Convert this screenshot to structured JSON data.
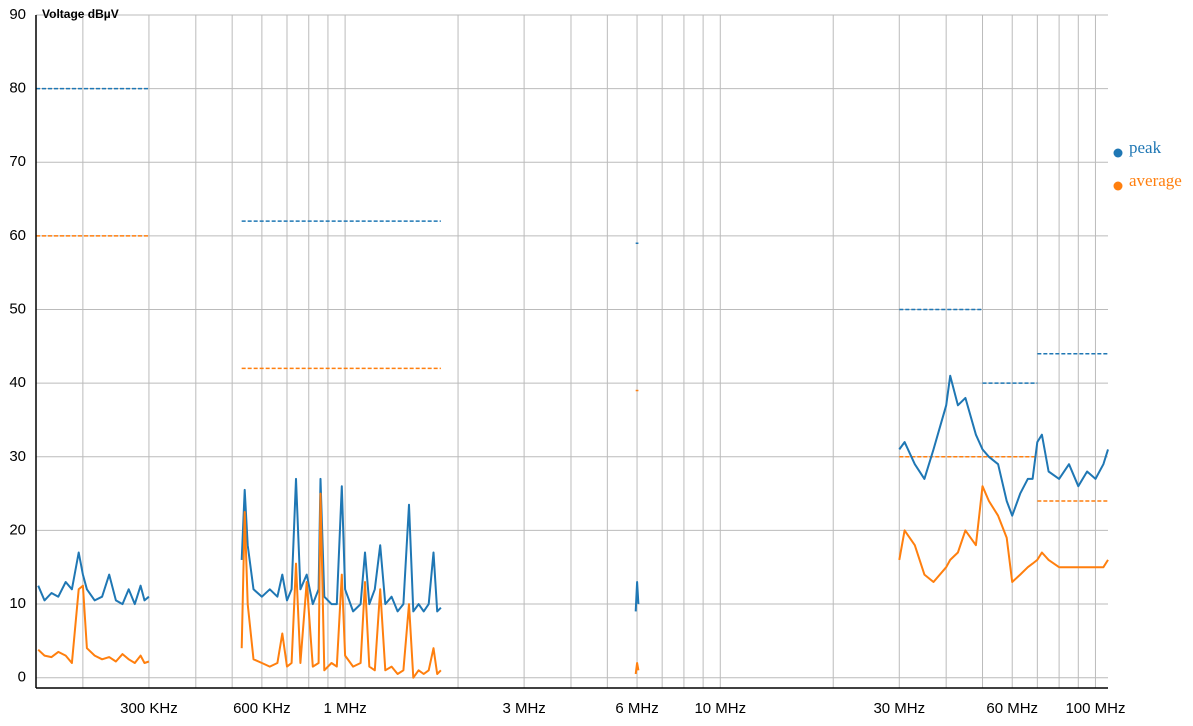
{
  "chart_data": {
    "type": "line",
    "y_label": "Voltage dBµV",
    "xscale": "log",
    "xlim": [
      0.15,
      108
    ],
    "ylim": [
      -1.4,
      90
    ],
    "xticks": [
      {
        "value": 0.3,
        "label": "300 KHz"
      },
      {
        "value": 0.6,
        "label": "600 KHz"
      },
      {
        "value": 1,
        "label": "1 MHz"
      },
      {
        "value": 3,
        "label": "3 MHz"
      },
      {
        "value": 6,
        "label": "6 MHz"
      },
      {
        "value": 10,
        "label": "10 MHz"
      },
      {
        "value": 30,
        "label": "30 MHz"
      },
      {
        "value": 60,
        "label": "60 MHz"
      },
      {
        "value": 100,
        "label": "100 MHz"
      }
    ],
    "xgrid": [
      0.2,
      0.4,
      0.5,
      0.7,
      0.8,
      0.9,
      2,
      4,
      5,
      7,
      8,
      9,
      20,
      40,
      50,
      70,
      80,
      90
    ],
    "yticks": [
      0,
      10,
      20,
      30,
      40,
      50,
      60,
      70,
      80,
      90
    ],
    "grid": true,
    "legend": "right",
    "x": [
      0.152,
      0.158,
      0.165,
      0.172,
      0.18,
      0.187,
      0.195,
      0.2,
      0.205,
      0.215,
      0.225,
      0.235,
      0.245,
      0.255,
      0.265,
      0.275,
      0.285,
      0.292,
      0.3,
      0.4,
      0.53,
      0.54,
      0.55,
      0.57,
      0.6,
      0.63,
      0.66,
      0.68,
      0.7,
      0.72,
      0.74,
      0.76,
      0.79,
      0.82,
      0.85,
      0.86,
      0.88,
      0.92,
      0.95,
      0.98,
      1.0,
      1.05,
      1.1,
      1.13,
      1.16,
      1.2,
      1.24,
      1.28,
      1.33,
      1.38,
      1.43,
      1.48,
      1.52,
      1.57,
      1.62,
      1.67,
      1.72,
      1.76,
      1.8,
      3,
      5.95,
      6.0,
      6.05,
      15,
      30,
      31,
      33,
      35,
      37,
      40,
      41,
      43,
      45,
      48,
      50,
      52,
      55,
      58,
      60,
      63,
      66,
      68,
      70,
      72,
      75,
      80,
      85,
      90,
      95,
      100,
      105,
      108
    ],
    "series": [
      {
        "name": "peak",
        "color": "#1f77b4",
        "values": [
          12.5,
          10.5,
          11.5,
          11,
          13,
          12,
          17,
          14,
          12,
          10.5,
          11,
          14,
          10.5,
          10,
          12,
          10,
          12.5,
          10.5,
          11,
          null,
          16,
          25.5,
          18,
          12,
          11,
          12,
          11,
          14,
          10.5,
          12,
          27,
          12,
          14,
          10,
          12,
          27,
          11,
          10,
          10,
          26,
          12,
          9,
          10,
          17,
          10,
          12,
          18,
          10,
          11,
          9,
          10,
          23.5,
          9,
          10,
          9,
          10,
          17,
          9,
          9.5,
          null,
          9,
          13,
          10,
          null,
          31,
          32,
          29,
          27,
          31,
          37,
          41,
          37,
          38,
          33,
          31,
          30,
          29,
          24,
          22,
          25,
          27,
          27,
          32,
          33,
          28,
          27,
          29,
          26,
          28,
          27,
          29,
          31
        ]
      },
      {
        "name": "average",
        "color": "#ff7f0e",
        "values": [
          3.8,
          3,
          2.8,
          3.5,
          3,
          2,
          12,
          12.5,
          4,
          3,
          2.5,
          2.8,
          2.2,
          3.2,
          2.5,
          2,
          3,
          2,
          2.2,
          null,
          4,
          22.5,
          10,
          2.5,
          2,
          1.5,
          2,
          6,
          1.5,
          2,
          15.5,
          2,
          13,
          1.5,
          2,
          25,
          1,
          2,
          1.5,
          14,
          3,
          1.5,
          2,
          13,
          1.5,
          1,
          12,
          1,
          1.5,
          0.5,
          1,
          10,
          0,
          1,
          0.5,
          1,
          4,
          0.5,
          1,
          null,
          0.5,
          2,
          1,
          null,
          16,
          20,
          18,
          14,
          13,
          15,
          16,
          17,
          20,
          18,
          26,
          24,
          22,
          19,
          13,
          14,
          15,
          15.5,
          16,
          17,
          16,
          15,
          15,
          15,
          15,
          15,
          15,
          16
        ]
      }
    ],
    "limits": [
      {
        "color": "#1f77b4",
        "x": [
          0.15,
          0.3
        ],
        "values": [
          80,
          80
        ]
      },
      {
        "color": "#1f77b4",
        "x": [
          0.53,
          1.8
        ],
        "values": [
          62,
          62
        ]
      },
      {
        "color": "#1f77b4",
        "x": [
          5.95,
          6.05
        ],
        "values": [
          59,
          59
        ]
      },
      {
        "color": "#1f77b4",
        "x": [
          30,
          50
        ],
        "values": [
          50,
          50
        ]
      },
      {
        "color": "#1f77b4",
        "x": [
          50,
          70
        ],
        "values": [
          40,
          40
        ]
      },
      {
        "color": "#1f77b4",
        "x": [
          70,
          108
        ],
        "values": [
          44,
          44
        ]
      },
      {
        "color": "#ff7f0e",
        "x": [
          0.15,
          0.3
        ],
        "values": [
          60,
          60
        ]
      },
      {
        "color": "#ff7f0e",
        "x": [
          0.53,
          1.8
        ],
        "values": [
          42,
          42
        ]
      },
      {
        "color": "#ff7f0e",
        "x": [
          5.95,
          6.05
        ],
        "values": [
          39,
          39
        ]
      },
      {
        "color": "#ff7f0e",
        "x": [
          30,
          70
        ],
        "values": [
          30,
          30
        ]
      },
      {
        "color": "#ff7f0e",
        "x": [
          70,
          108
        ],
        "values": [
          24,
          24
        ]
      }
    ]
  }
}
